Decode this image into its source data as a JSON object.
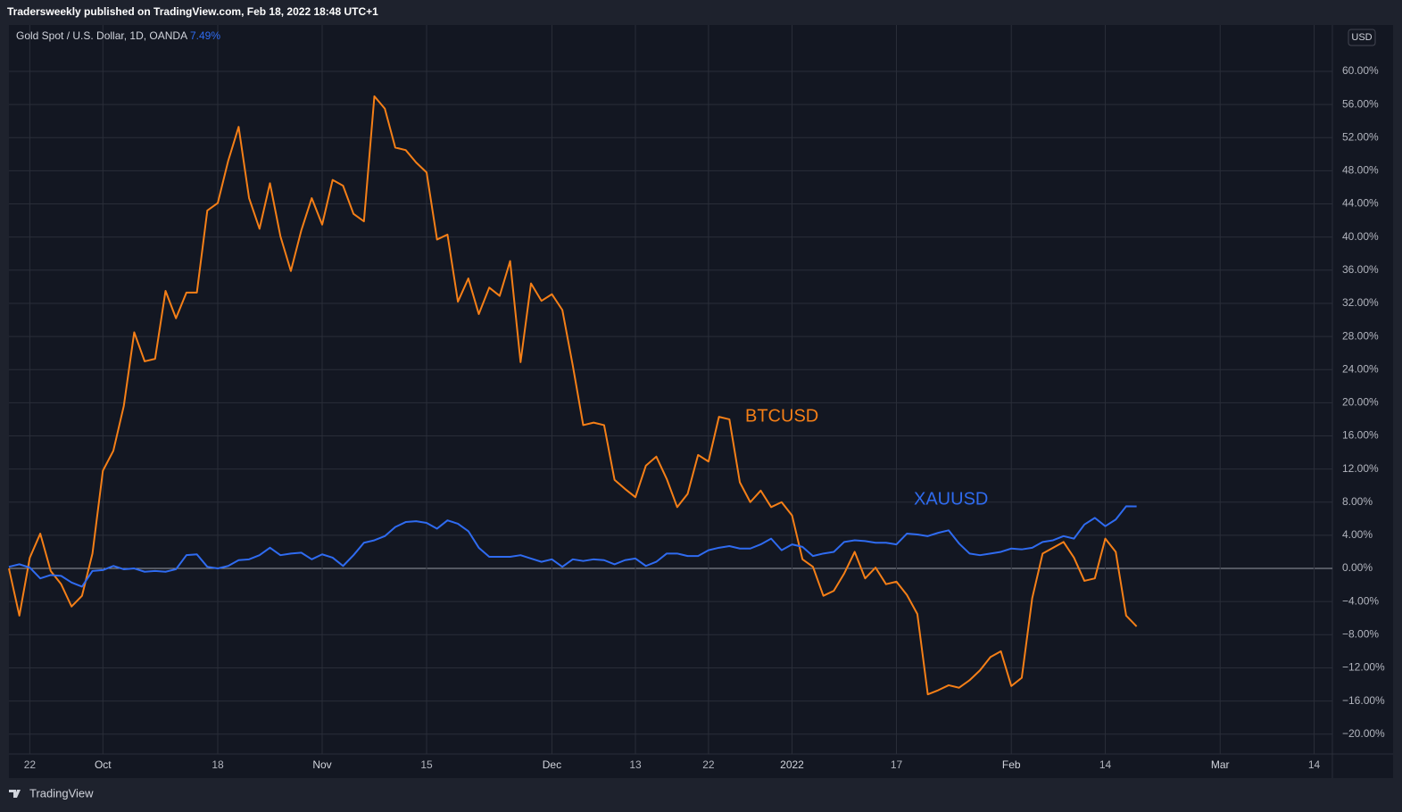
{
  "header": {
    "published": "Tradersweekly published on TradingView.com, Feb 18, 2022 18:48 UTC+1",
    "symbol": "Gold Spot / U.S. Dollar, 1D, OANDA",
    "change": "7.49%"
  },
  "currency": "USD",
  "footer": "TradingView",
  "chart_data": {
    "type": "line",
    "categories": [
      null,
      null,
      "22",
      null,
      null,
      null,
      null,
      null,
      null,
      "Oct",
      null,
      null,
      null,
      null,
      null,
      null,
      null,
      null,
      null,
      null,
      "18",
      null,
      null,
      null,
      null,
      null,
      null,
      null,
      null,
      null,
      "Nov",
      null,
      null,
      null,
      null,
      null,
      null,
      null,
      null,
      null,
      "15",
      null,
      null,
      null,
      null,
      null,
      null,
      null,
      null,
      null,
      null,
      null,
      "Dec",
      null,
      null,
      null,
      null,
      null,
      null,
      null,
      "13",
      null,
      null,
      null,
      null,
      null,
      null,
      "22",
      null,
      null,
      null,
      null,
      null,
      null,
      null,
      "2022",
      null,
      null,
      null,
      null,
      null,
      null,
      null,
      null,
      null,
      "17",
      null,
      null,
      null,
      null,
      null,
      null,
      null,
      null,
      null,
      null,
      "Feb",
      null,
      null,
      null,
      null,
      null,
      null,
      null,
      null,
      "14",
      null,
      null,
      null,
      null,
      null,
      null,
      null,
      null,
      null,
      null,
      "Mar",
      null,
      null,
      null,
      null,
      null,
      null,
      null,
      null,
      "14",
      null,
      null
    ],
    "series": [
      {
        "name": "BTCUSD",
        "color": "#f57f17",
        "values": [
          0,
          -5.7,
          1.3,
          4.2,
          -0.3,
          -1.9,
          -4.6,
          -3.3,
          1.8,
          11.8,
          14.2,
          19.6,
          28.5,
          25,
          25.3,
          33.5,
          30.2,
          33.3,
          33.3,
          43.2,
          44.1,
          49.2,
          53.3,
          44.7,
          41,
          46.5,
          40.1,
          35.9,
          40.8,
          44.7,
          41.5,
          46.9,
          46.2,
          42.8,
          41.9,
          57,
          55.5,
          50.8,
          50.5,
          49,
          47.8,
          39.7,
          40.3,
          32.2,
          35,
          30.7,
          33.9,
          32.9,
          37.1,
          24.9,
          34.4,
          32.3,
          33.1,
          31.2,
          24.5,
          17.3,
          17.6,
          17.3,
          10.7,
          9.6,
          8.6,
          12.4,
          13.5,
          10.8,
          7.4,
          9,
          13.7,
          12.9,
          18.3,
          18,
          10.4,
          8,
          9.4,
          7.4,
          8,
          6.4,
          1.1,
          0.2,
          -3.3,
          -2.7,
          -0.6,
          2,
          -1.2,
          0.1,
          -1.9,
          -1.6,
          -3.2,
          -5.5,
          -15.2,
          -14.7,
          -14.1,
          -14.4,
          -13.5,
          -12.3,
          -10.7,
          -10,
          -14.2,
          -13.2,
          -3.6,
          1.8,
          2.5,
          3.2,
          1.3,
          -1.5,
          -1.2,
          3.6,
          2,
          -5.7,
          -7,
          null,
          null,
          null,
          null,
          null,
          null,
          null,
          null,
          null,
          null,
          null,
          null,
          null,
          null,
          null,
          null,
          null,
          null,
          null
        ]
      },
      {
        "name": "XAUUSD",
        "color": "#2f6bf0",
        "values": [
          0.2,
          0.5,
          0.1,
          -1.2,
          -0.8,
          -0.9,
          -1.7,
          -2.2,
          -0.3,
          -0.2,
          0.3,
          -0.1,
          0,
          -0.4,
          -0.3,
          -0.4,
          -0.1,
          1.6,
          1.7,
          0.2,
          0,
          0.3,
          1,
          1.1,
          1.6,
          2.5,
          1.6,
          1.8,
          1.9,
          1.1,
          1.7,
          1.3,
          0.3,
          1.6,
          3.1,
          3.4,
          3.9,
          5,
          5.6,
          5.7,
          5.5,
          4.8,
          5.8,
          5.4,
          4.5,
          2.5,
          1.4,
          1.4,
          1.4,
          1.6,
          1.2,
          0.8,
          1.1,
          0.2,
          1.1,
          0.9,
          1.1,
          1,
          0.5,
          1,
          1.2,
          0.3,
          0.8,
          1.8,
          1.8,
          1.5,
          1.5,
          2.2,
          2.5,
          2.7,
          2.4,
          2.4,
          2.9,
          3.6,
          2.2,
          2.9,
          2.6,
          1.5,
          1.8,
          2,
          3.2,
          3.4,
          3.3,
          3.1,
          3.1,
          2.9,
          4.2,
          4.1,
          3.9,
          4.3,
          4.6,
          3,
          1.8,
          1.6,
          1.8,
          2,
          2.4,
          2.3,
          2.5,
          3.2,
          3.4,
          3.9,
          3.6,
          5.3,
          6.1,
          5.1,
          5.9,
          7.5,
          7.49,
          null,
          null,
          null,
          null,
          null,
          null,
          null,
          null,
          null,
          null,
          null,
          null,
          null,
          null,
          null,
          null,
          null,
          null,
          null
        ]
      }
    ],
    "ylim": [
      -22.4,
      65.6
    ],
    "yticks": [
      {
        "value": -20,
        "label": "−20.00%"
      },
      {
        "value": -16,
        "label": "−16.00%"
      },
      {
        "value": -12,
        "label": "−12.00%"
      },
      {
        "value": -8,
        "label": "−8.00%"
      },
      {
        "value": -4,
        "label": "−4.00%"
      },
      {
        "value": 0,
        "label": "0.00%"
      },
      {
        "value": 4,
        "label": "4.00%"
      },
      {
        "value": 8,
        "label": "8.00%"
      },
      {
        "value": 12,
        "label": "12.00%"
      },
      {
        "value": 16,
        "label": "16.00%"
      },
      {
        "value": 20,
        "label": "20.00%"
      },
      {
        "value": 24,
        "label": "24.00%"
      },
      {
        "value": 28,
        "label": "28.00%"
      },
      {
        "value": 32,
        "label": "32.00%"
      },
      {
        "value": 36,
        "label": "36.00%"
      },
      {
        "value": 40,
        "label": "40.00%"
      },
      {
        "value": 44,
        "label": "44.00%"
      },
      {
        "value": 48,
        "label": "48.00%"
      },
      {
        "value": 52,
        "label": "52.00%"
      },
      {
        "value": 56,
        "label": "56.00%"
      },
      {
        "value": 60,
        "label": "60.00%"
      }
    ],
    "grid": true
  }
}
